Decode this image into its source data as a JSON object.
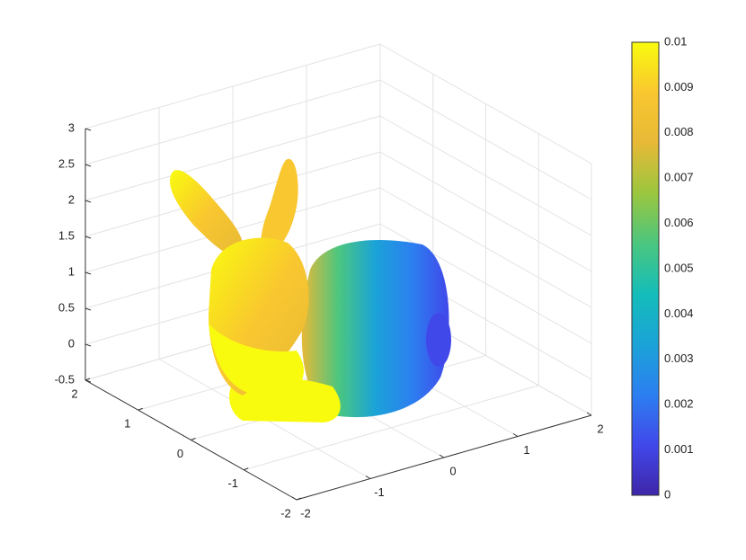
{
  "chart_data": {
    "type": "scatter3d",
    "xlim": [
      -2,
      2
    ],
    "xticks": [
      -2,
      -1,
      0,
      1,
      2
    ],
    "ylim": [
      -2,
      2
    ],
    "yticks": [
      -2,
      -1,
      0,
      1,
      2
    ],
    "zlim": [
      -0.5,
      3
    ],
    "zticks": [
      -0.5,
      0,
      0.5,
      1,
      1.5,
      2,
      2.5,
      3
    ],
    "grid": true,
    "colorbar": {
      "clim": [
        0,
        0.01
      ],
      "ticks": [
        0,
        0.001,
        0.002,
        0.003,
        0.004,
        0.005,
        0.006,
        0.007,
        0.008,
        0.009,
        0.01
      ]
    },
    "colormap": [
      "#3e26a8",
      "#4148ea",
      "#2c7ff0",
      "#1ba3d8",
      "#14bdb9",
      "#4bc67f",
      "#9bc63e",
      "#e7b937",
      "#f9c72f",
      "#f9fb0e"
    ]
  }
}
